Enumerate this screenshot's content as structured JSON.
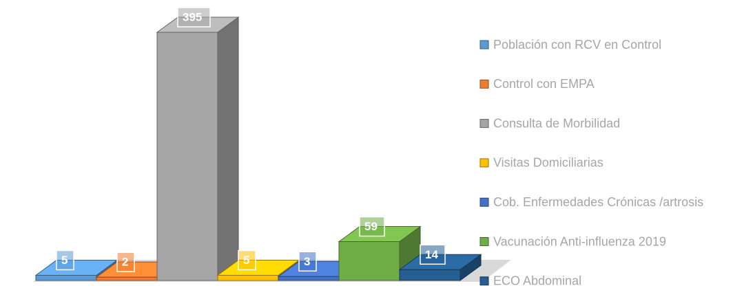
{
  "chart_data": {
    "type": "bar3d",
    "series": [
      {
        "name": "Población con RCV en Control",
        "color": "#5b9bd5",
        "values": [
          5
        ]
      },
      {
        "name": "Control con EMPA",
        "color": "#ed7d31",
        "values": [
          2
        ]
      },
      {
        "name": "Consulta de Morbilidad",
        "color": "#a5a5a5",
        "values": [
          395
        ]
      },
      {
        "name": "Visitas Domiciliarias",
        "color": "#ffc000",
        "values": [
          5
        ]
      },
      {
        "name": "Cob. Enfermedades Crónicas /artrosis",
        "color": "#4472c4",
        "values": [
          3
        ]
      },
      {
        "name": "Vacunación Anti-influenza 2019",
        "color": "#70ad47",
        "values": [
          59
        ]
      },
      {
        "name": "ECO Abdominal",
        "color": "#255e91",
        "values": [
          14
        ]
      }
    ],
    "legend": "right"
  }
}
